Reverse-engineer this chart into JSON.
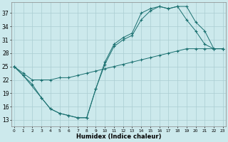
{
  "xlabel": "Humidex (Indice chaleur)",
  "background_color": "#cce9ec",
  "grid_color": "#aacdd1",
  "line_color": "#1a7070",
  "yticks": [
    13,
    16,
    19,
    22,
    25,
    28,
    31,
    34,
    37
  ],
  "xticks": [
    0,
    1,
    2,
    3,
    4,
    5,
    6,
    7,
    8,
    9,
    10,
    11,
    12,
    13,
    14,
    15,
    16,
    17,
    18,
    19,
    20,
    21,
    22,
    23
  ],
  "xlim": [
    -0.3,
    23.3
  ],
  "ylim": [
    11.5,
    39.5
  ],
  "line1_x": [
    0,
    1,
    2,
    3,
    4,
    5,
    6,
    7,
    8,
    9,
    10,
    11,
    12,
    13,
    14,
    15,
    16,
    17,
    18,
    19,
    20,
    21,
    22,
    23
  ],
  "line1_y": [
    25,
    23,
    21,
    18,
    15.5,
    14.5,
    14,
    13.5,
    13.5,
    20,
    25.5,
    29.5,
    31,
    32,
    35.5,
    37.5,
    38.5,
    38,
    38.5,
    35.5,
    33,
    30,
    29,
    29
  ],
  "line2_x": [
    0,
    1,
    3,
    4,
    5,
    6,
    7,
    8,
    9,
    10,
    11,
    12,
    13,
    14,
    15,
    16,
    17,
    18,
    19,
    20,
    21,
    22,
    23
  ],
  "line2_y": [
    25,
    23,
    18,
    15.5,
    14.5,
    14,
    13.5,
    13.5,
    20,
    26,
    30,
    31.5,
    32.5,
    37,
    38,
    38.5,
    38,
    38.5,
    38.5,
    35,
    33,
    29,
    29
  ],
  "line3_x": [
    0,
    1,
    2,
    3,
    4,
    5,
    6,
    7,
    8,
    9,
    10,
    11,
    12,
    13,
    14,
    15,
    16,
    17,
    18,
    19,
    20,
    21,
    22,
    23
  ],
  "line3_y": [
    25,
    23.5,
    22,
    22,
    22,
    22.5,
    22.5,
    23,
    23.5,
    24,
    24.5,
    25,
    25.5,
    26,
    26.5,
    27,
    27.5,
    28,
    28.5,
    29,
    29,
    29,
    29,
    29
  ]
}
